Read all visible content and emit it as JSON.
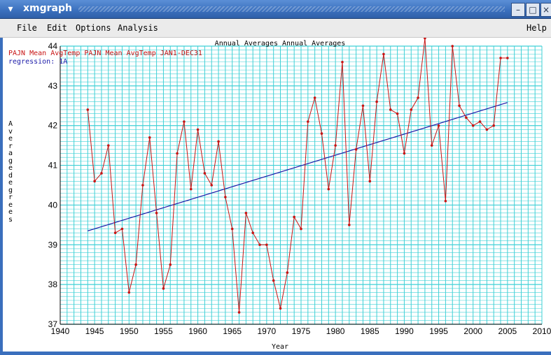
{
  "window": {
    "title": "xmgraph",
    "controls": {
      "menu": "▾",
      "minimize": "–",
      "maximize": "□",
      "close": "×"
    }
  },
  "menubar": {
    "file": "File",
    "edit": "Edit",
    "options": "Options",
    "analysis": "Analysis",
    "help": "Help"
  },
  "colors": {
    "grid": "#3fd0d6",
    "data_line": "#c81414",
    "regression": "#1a1aa8",
    "title_bar": "#3a6fbd"
  },
  "chart_data": {
    "type": "line",
    "title": "Annual Averages Annual Averages",
    "legend": [
      {
        "label": "PAJN Mean AvgTemp PAJN Mean AvgTemp JAN1-DEC31",
        "color": "#c81414"
      },
      {
        "label": "regression: 1A",
        "color": "#1a1aa8"
      }
    ],
    "xlabel": "Year",
    "ylabel": "Average degrees",
    "xlim": [
      1940,
      2010
    ],
    "ylim": [
      37,
      44
    ],
    "x_tick_labels": [
      "1940",
      "1945",
      "1950",
      "1955",
      "1960",
      "1965",
      "1970",
      "1975",
      "1980",
      "1985",
      "1990",
      "1995",
      "2000",
      "2005",
      "2010"
    ],
    "y_tick_labels": [
      "37",
      "38",
      "39",
      "40",
      "41",
      "42",
      "43",
      "44"
    ],
    "grid": true,
    "series": [
      {
        "name": "PAJN Mean AvgTemp PAJN Mean AvgTemp JAN1-DEC31",
        "x": [
          1944,
          1945,
          1946,
          1947,
          1948,
          1949,
          1950,
          1951,
          1952,
          1953,
          1954,
          1955,
          1956,
          1957,
          1958,
          1959,
          1960,
          1961,
          1962,
          1963,
          1964,
          1965,
          1966,
          1967,
          1968,
          1969,
          1970,
          1971,
          1972,
          1973,
          1974,
          1975,
          1976,
          1977,
          1978,
          1979,
          1980,
          1981,
          1982,
          1983,
          1984,
          1985,
          1986,
          1987,
          1988,
          1989,
          1990,
          1991,
          1992,
          1993,
          1994,
          1995,
          1996,
          1997,
          1998,
          1999,
          2000,
          2001,
          2002,
          2003,
          2004,
          2005
        ],
        "y": [
          42.4,
          40.6,
          40.8,
          41.5,
          39.3,
          39.4,
          37.8,
          38.5,
          40.5,
          41.7,
          39.8,
          37.9,
          38.5,
          41.3,
          42.1,
          40.4,
          41.9,
          40.8,
          40.5,
          41.6,
          40.2,
          39.4,
          37.3,
          39.8,
          39.3,
          39.0,
          39.0,
          38.1,
          37.4,
          38.3,
          39.7,
          39.4,
          42.1,
          42.7,
          41.8,
          40.4,
          41.5,
          43.6,
          39.5,
          41.4,
          42.5,
          40.6,
          42.6,
          43.8,
          42.4,
          42.3,
          41.3,
          42.4,
          42.7,
          44.2,
          41.5,
          42.0,
          40.1,
          44.0,
          42.5,
          42.2,
          42.0,
          42.1,
          41.9,
          42.0,
          43.7,
          43.7
        ]
      },
      {
        "name": "regression: 1A",
        "x": [
          1944,
          2005
        ],
        "y": [
          39.35,
          42.58
        ]
      }
    ]
  }
}
